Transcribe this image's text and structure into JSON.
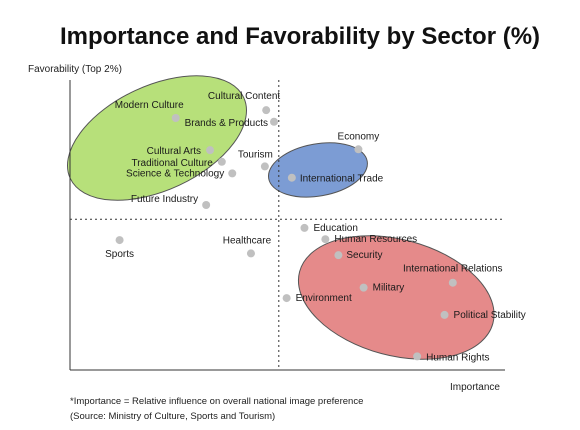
{
  "chart_data": {
    "type": "scatter",
    "title": "Importance and Favorability by Sector (%)",
    "xlabel": "Importance",
    "ylabel": "Favorability (Top 2%)",
    "xlim": [
      0,
      100
    ],
    "ylim": [
      0,
      100
    ],
    "reference_lines": {
      "x": 48,
      "y": 52
    },
    "colors": {
      "point": "#c0c0c0",
      "cluster_green": "#b7e07a",
      "cluster_blue": "#7c9cd4",
      "cluster_red": "#e58a8a",
      "cluster_edge": "#555555"
    },
    "clusters": [
      {
        "name": "cluster_green",
        "cx": 20,
        "cy": 80,
        "rx": 22,
        "ry": 18,
        "rot": -25,
        "color": "#b7e07a"
      },
      {
        "name": "cluster_blue",
        "cx": 57,
        "cy": 69,
        "rx": 11.5,
        "ry": 9,
        "rot": -10,
        "color": "#7c9cd4"
      },
      {
        "name": "cluster_red",
        "cx": 75,
        "cy": 25,
        "rx": 23,
        "ry": 20,
        "rot": 15,
        "color": "#e58a8a"
      }
    ],
    "points": [
      {
        "label": "Modern Culture",
        "x": 24.3,
        "y": 86.9,
        "anchor": "end",
        "dx": 8,
        "dy": -10
      },
      {
        "label": "Cultural Content",
        "x": 45.1,
        "y": 89.6,
        "anchor": "end",
        "dx": 14,
        "dy": -11
      },
      {
        "label": "Brands & Products",
        "x": 46.9,
        "y": 85.6,
        "anchor": "end",
        "dx": -6,
        "dy": 4
      },
      {
        "label": "Cultural Arts",
        "x": 32.2,
        "y": 75.8,
        "anchor": "end",
        "dx": -9,
        "dy": 4
      },
      {
        "label": "Traditional Culture",
        "x": 34.9,
        "y": 71.8,
        "anchor": "end",
        "dx": -9,
        "dy": 4
      },
      {
        "label": "Tourism",
        "x": 44.8,
        "y": 70.2,
        "anchor": "end",
        "dx": 8,
        "dy": -9
      },
      {
        "label": "Science & Technology",
        "x": 37.3,
        "y": 67.8,
        "anchor": "end",
        "dx": -8,
        "dy": 3
      },
      {
        "label": "Future Industry",
        "x": 31.3,
        "y": 56.9,
        "anchor": "end",
        "dx": -8,
        "dy": -3
      },
      {
        "label": "Economy",
        "x": 66.3,
        "y": 76.1,
        "anchor": "middle",
        "dx": 0,
        "dy": -10
      },
      {
        "label": "International Trade",
        "x": 51.0,
        "y": 66.3,
        "anchor": "start",
        "dx": 8,
        "dy": 4
      },
      {
        "label": "Education",
        "x": 53.9,
        "y": 49.0,
        "anchor": "start",
        "dx": 9,
        "dy": 3
      },
      {
        "label": "Human Resources",
        "x": 58.7,
        "y": 45.1,
        "anchor": "start",
        "dx": 9,
        "dy": 3
      },
      {
        "label": "Security",
        "x": 61.7,
        "y": 39.6,
        "anchor": "start",
        "dx": 8,
        "dy": 3
      },
      {
        "label": "Sports",
        "x": 11.4,
        "y": 44.8,
        "anchor": "middle",
        "dx": 0,
        "dy": 17
      },
      {
        "label": "Healthcare",
        "x": 41.6,
        "y": 40.2,
        "anchor": "middle",
        "dx": -4,
        "dy": -10
      },
      {
        "label": "International Relations",
        "x": 88.0,
        "y": 30.1,
        "anchor": "middle",
        "dx": 0,
        "dy": -11
      },
      {
        "label": "Military",
        "x": 67.5,
        "y": 28.4,
        "anchor": "start",
        "dx": 9,
        "dy": 3
      },
      {
        "label": "Environment",
        "x": 49.8,
        "y": 24.8,
        "anchor": "start",
        "dx": 9,
        "dy": 3
      },
      {
        "label": "Political Stability",
        "x": 86.1,
        "y": 19.0,
        "anchor": "start",
        "dx": 9,
        "dy": 3
      },
      {
        "label": "Human Rights",
        "x": 79.8,
        "y": 4.7,
        "anchor": "start",
        "dx": 9,
        "dy": 4
      }
    ],
    "footnotes": [
      "*Importance = Relative influence on overall national image preference",
      "(Source: Ministry of Culture, Sports and Tourism)"
    ]
  }
}
